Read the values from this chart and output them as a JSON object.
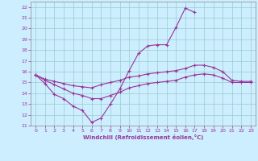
{
  "xlabel": "Windchill (Refroidissement éolien,°C)",
  "x": [
    0,
    1,
    2,
    3,
    4,
    5,
    6,
    7,
    8,
    9,
    10,
    11,
    12,
    13,
    14,
    15,
    16,
    17,
    18,
    19,
    20,
    21,
    22,
    23
  ],
  "line1": [
    15.7,
    14.9,
    13.9,
    13.5,
    12.8,
    12.4,
    11.3,
    11.7,
    13.0,
    14.4,
    16.1,
    17.7,
    18.4,
    18.5,
    18.5,
    20.1,
    21.9,
    21.5,
    null,
    null,
    null,
    null,
    null,
    null
  ],
  "line2": [
    15.7,
    15.3,
    15.1,
    14.9,
    14.7,
    14.6,
    14.5,
    14.8,
    15.0,
    15.2,
    15.5,
    15.6,
    15.8,
    15.9,
    16.0,
    16.1,
    16.3,
    16.6,
    16.6,
    16.4,
    16.0,
    15.2,
    15.1,
    15.1
  ],
  "line3": [
    15.7,
    15.2,
    14.8,
    14.4,
    14.0,
    13.8,
    13.5,
    13.5,
    13.8,
    14.1,
    14.5,
    14.7,
    14.9,
    15.0,
    15.1,
    15.2,
    15.5,
    15.7,
    15.8,
    15.7,
    15.4,
    15.0,
    15.0,
    15.0
  ],
  "line_color": "#993399",
  "bg_color": "#cceeff",
  "grid_color": "#99cccc",
  "ylim": [
    11,
    22
  ],
  "xlim": [
    0,
    23
  ],
  "yticks": [
    11,
    12,
    13,
    14,
    15,
    16,
    17,
    18,
    19,
    20,
    21,
    22
  ],
  "xticks": [
    0,
    1,
    2,
    3,
    4,
    5,
    6,
    7,
    8,
    9,
    10,
    11,
    12,
    13,
    14,
    15,
    16,
    17,
    18,
    19,
    20,
    21,
    22,
    23
  ]
}
